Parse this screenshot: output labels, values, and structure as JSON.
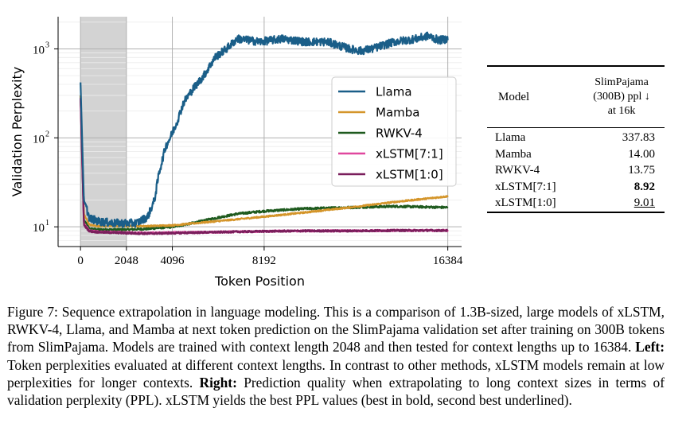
{
  "chart_data": {
    "type": "line",
    "xlabel": "Token Position",
    "ylabel": "Validation Perplexity",
    "yscale": "log",
    "xlim": [
      -1000,
      17000
    ],
    "ylim": [
      6,
      2300
    ],
    "xticks": [
      0,
      2048,
      4096,
      8192,
      16384
    ],
    "xtick_labels": [
      "0",
      "2048",
      "4096",
      "8192",
      "16384"
    ],
    "yticks": [
      10,
      100,
      1000
    ],
    "ytick_labels": [
      "10",
      "10",
      "10"
    ],
    "ytick_exponents": [
      "1",
      "2",
      "3"
    ],
    "shaded_region": [
      0,
      2048
    ],
    "grid": true,
    "legend_position": "right-middle",
    "series": [
      {
        "name": "Llama",
        "color": "#1a5e88",
        "x": [
          0,
          150,
          400,
          800,
          1500,
          2048,
          2500,
          3000,
          3300,
          3500,
          3800,
          4000,
          4300,
          4600,
          5000,
          5500,
          6000,
          6500,
          7000,
          7500,
          8000,
          9000,
          10000,
          11000,
          12000,
          12500,
          13000,
          14000,
          15000,
          15500,
          16000,
          16384
        ],
        "y": [
          420,
          20,
          12.5,
          11.5,
          11,
          11,
          11,
          13,
          20,
          40,
          80,
          100,
          150,
          250,
          350,
          500,
          800,
          1000,
          1300,
          1250,
          1200,
          1300,
          1200,
          1200,
          1000,
          950,
          1000,
          1200,
          1300,
          1400,
          1250,
          1300
        ]
      },
      {
        "name": "Mamba",
        "color": "#d4952a",
        "x": [
          0,
          150,
          400,
          800,
          1500,
          2048,
          3000,
          4096,
          6000,
          8192,
          10000,
          12000,
          14000,
          16384
        ],
        "y": [
          300,
          14,
          10.5,
          10.2,
          10.2,
          10.2,
          10.2,
          10.4,
          11.5,
          13,
          14.5,
          16.5,
          19,
          22
        ]
      },
      {
        "name": "RWKV-4",
        "color": "#1e5a1e",
        "x": [
          0,
          150,
          400,
          800,
          1500,
          2048,
          3000,
          4096,
          5000,
          6000,
          7000,
          8192,
          10000,
          12000,
          14000,
          16384
        ],
        "y": [
          300,
          12,
          9.5,
          9.3,
          9.3,
          9.3,
          9.5,
          10,
          11,
          12.5,
          14,
          15,
          16,
          16.5,
          17,
          16.5
        ]
      },
      {
        "name": "xLSTM[7:1]",
        "color": "#e0479e",
        "x": [
          0,
          150,
          400,
          800,
          1500,
          2048,
          3000,
          4096,
          6000,
          8192,
          10000,
          12000,
          14000,
          16384
        ],
        "y": [
          280,
          11,
          9,
          8.8,
          8.7,
          8.6,
          8.5,
          8.6,
          8.7,
          8.9,
          9,
          9,
          9.1,
          9.1
        ]
      },
      {
        "name": "xLSTM[1:0]",
        "color": "#7a1e5c",
        "x": [
          0,
          150,
          400,
          800,
          1500,
          2048,
          3000,
          4096,
          6000,
          8192,
          10000,
          12000,
          14000,
          16384
        ],
        "y": [
          280,
          10.5,
          8.9,
          8.7,
          8.6,
          8.5,
          8.4,
          8.5,
          8.7,
          8.9,
          9,
          9,
          9.1,
          9.1
        ]
      }
    ]
  },
  "table": {
    "header_model": "Model",
    "header_metric_lines": [
      "SlimPajama",
      "(300B) ppl ↓",
      "at 16k"
    ],
    "rows": [
      {
        "model": "Llama",
        "value": "337.83",
        "style": "normal"
      },
      {
        "model": "Mamba",
        "value": "14.00",
        "style": "normal"
      },
      {
        "model": "RWKV-4",
        "value": "13.75",
        "style": "normal"
      },
      {
        "model": "xLSTM[7:1]",
        "value": "8.92",
        "style": "bold"
      },
      {
        "model": "xLSTM[1:0]",
        "value": "9.01",
        "style": "underline"
      }
    ]
  },
  "caption": {
    "part1": "Figure 7: Sequence extrapolation in language modeling. This is a comparison of 1.3B-sized, large models of xLSTM, RWKV-4, Llama, and Mamba at next token prediction on the SlimPajama validation set after training on 300B tokens from SlimPajama. Models are trained with context length 2048 and then tested for context lengths up to 16384. ",
    "left_label": "Left:",
    "part2": " Token perplexities evaluated at different context lengths. In contrast to other methods, xLSTM models remain at low perplexities for longer contexts. ",
    "right_label": "Right:",
    "part3": " Prediction quality when extrapolating to long context sizes in terms of validation perplexity (PPL). xLSTM yields the best PPL values (best in bold, second best underlined)."
  }
}
